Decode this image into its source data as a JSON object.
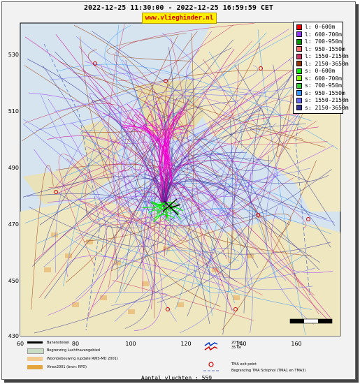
{
  "header": {
    "title": "2022-12-25 11:30:00 - 2022-12-25 16:59:59 CET",
    "brand": "www.vlieghinder.nl"
  },
  "axes": {
    "x_ticks": [
      "60",
      "80",
      "100",
      "120",
      "140",
      "160"
    ],
    "y_ticks": [
      "530",
      "510",
      "490",
      "470",
      "450",
      "430"
    ]
  },
  "legend": [
    {
      "label": "l: 0-600m",
      "color": "#ff0000"
    },
    {
      "label": "l: 600-700m",
      "color": "#9933ff"
    },
    {
      "label": "l: 700-950m",
      "color": "#009900"
    },
    {
      "label": "l: 950-1550m",
      "color": "#ff6666"
    },
    {
      "label": "l: 1550-2150m",
      "color": "#cc3366"
    },
    {
      "label": "l: 2150-3650m",
      "color": "#993300"
    },
    {
      "label": "s: 0-600m",
      "color": "#00ee00"
    },
    {
      "label": "s: 600-700m",
      "color": "#88ff00"
    },
    {
      "label": "s: 700-950m",
      "color": "#33cc33"
    },
    {
      "label": "s: 950-1550m",
      "color": "#3399ff"
    },
    {
      "label": "s: 1550-2150m",
      "color": "#6666ff"
    },
    {
      "label": "s: 2150-3650m",
      "color": "#333399"
    }
  ],
  "bottom_legend": {
    "runway": "Banenstelsel",
    "airport_boundary": "Begrenzing Luchthavengebied",
    "housing": "Woonbebouwing (update RWS-MD 2001)",
    "vinex": "Vinex2001 (bron: RPD)",
    "ke20": "20 Ke",
    "ke35": "35 Ke",
    "tma_exit": "TMA exit point",
    "tma_boundary": "Begrenzing TMA Schiphol  (TMA1 en TMA3)"
  },
  "footer": {
    "count": "Aantal vluchten : 559"
  }
}
